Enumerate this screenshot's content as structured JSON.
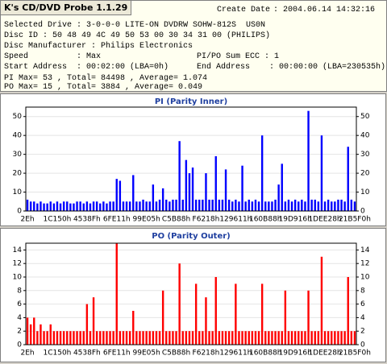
{
  "header": {
    "title": "K's CD/DVD Probe 1.1.29",
    "create_date_label": "Create Date",
    "create_date": ": 2004.06.14 14:32:16",
    "selected_drive": "Selected Drive : 3-0-0-0 LITE-ON DVDRW SOHW-812S  US0N",
    "disc_id": "Disc ID : 50 48 49 4C 49 50 53 00 30 34 31 00 (PHILIPS)",
    "disc_manufacturer": "Disc Manufacturer : Philips Electronics",
    "speed": "Speed          : Max",
    "sum_ecc": "PI/PO Sum ECC : 1",
    "start_address": "Start Address  : 00:02:00 (LBA=0h)",
    "end_address": "End Address    : 00:00:00 (LBA=230535h)",
    "pi_summary": "PI Max= 53 , Total= 84498 , Average= 1.074",
    "po_summary": "PO Max= 15 , Total= 3884 , Average= 0.049"
  },
  "chart_data": [
    {
      "type": "bar",
      "title": "PI (Parity Inner)",
      "color": "#0000ff",
      "grid": true,
      "ylim": [
        0,
        55
      ],
      "yticks": [
        0,
        10,
        20,
        30,
        40,
        50
      ],
      "categories": [
        "2Eh",
        null,
        null,
        null,
        null,
        null,
        null,
        null,
        null,
        "1C150h",
        null,
        null,
        null,
        null,
        null,
        null,
        null,
        null,
        "4538Fh",
        null,
        null,
        null,
        null,
        null,
        null,
        null,
        null,
        "6FE11h",
        null,
        null,
        null,
        null,
        null,
        null,
        null,
        null,
        "99E05h",
        null,
        null,
        null,
        null,
        null,
        null,
        null,
        null,
        "C5B88h",
        null,
        null,
        null,
        null,
        null,
        null,
        null,
        null,
        "F6218h",
        null,
        null,
        null,
        null,
        null,
        null,
        null,
        null,
        "129611h",
        null,
        null,
        null,
        null,
        null,
        null,
        null,
        null,
        "160B88h",
        null,
        null,
        null,
        null,
        null,
        null,
        null,
        null,
        "19D916h",
        null,
        null,
        null,
        null,
        null,
        null,
        null,
        null,
        "1DEE28h",
        null,
        null,
        null,
        null,
        null,
        null,
        null,
        null,
        "21B5F0h"
      ],
      "values": [
        6,
        5,
        5,
        4,
        5,
        4,
        4,
        5,
        4,
        5,
        4,
        5,
        5,
        4,
        4,
        5,
        5,
        4,
        5,
        4,
        5,
        5,
        4,
        5,
        4,
        5,
        5,
        17,
        16,
        5,
        5,
        5,
        19,
        5,
        5,
        6,
        5,
        5,
        14,
        5,
        6,
        12,
        6,
        5,
        6,
        6,
        37,
        6,
        27,
        20,
        23,
        6,
        6,
        6,
        20,
        6,
        6,
        29,
        6,
        6,
        22,
        6,
        5,
        6,
        5,
        24,
        5,
        6,
        5,
        6,
        5,
        40,
        5,
        5,
        5,
        6,
        14,
        25,
        5,
        6,
        5,
        6,
        5,
        6,
        5,
        53,
        6,
        6,
        5,
        40,
        5,
        6,
        5,
        5,
        6,
        6,
        5,
        34,
        6,
        5
      ]
    },
    {
      "type": "bar",
      "title": "PO (Parity Outer)",
      "color": "#ff0000",
      "grid": true,
      "ylim": [
        0,
        15
      ],
      "yticks": [
        0,
        2,
        4,
        6,
        8,
        10,
        12,
        14
      ],
      "categories": [
        "2Eh",
        null,
        null,
        null,
        null,
        null,
        null,
        null,
        null,
        "1C150h",
        null,
        null,
        null,
        null,
        null,
        null,
        null,
        null,
        "4538Fh",
        null,
        null,
        null,
        null,
        null,
        null,
        null,
        null,
        "6FE11h",
        null,
        null,
        null,
        null,
        null,
        null,
        null,
        null,
        "99E05h",
        null,
        null,
        null,
        null,
        null,
        null,
        null,
        null,
        "C5B88h",
        null,
        null,
        null,
        null,
        null,
        null,
        null,
        null,
        "F6218h",
        null,
        null,
        null,
        null,
        null,
        null,
        null,
        null,
        "129611h",
        null,
        null,
        null,
        null,
        null,
        null,
        null,
        null,
        "160B88h",
        null,
        null,
        null,
        null,
        null,
        null,
        null,
        null,
        "19D916h",
        null,
        null,
        null,
        null,
        null,
        null,
        null,
        null,
        "1DEE28h",
        null,
        null,
        null,
        null,
        null,
        null,
        null,
        null,
        "21B5F0h"
      ],
      "values": [
        4,
        3,
        4,
        2,
        3,
        2,
        2,
        3,
        2,
        2,
        2,
        2,
        2,
        2,
        2,
        2,
        2,
        2,
        6,
        2,
        7,
        2,
        2,
        2,
        2,
        2,
        2,
        15,
        2,
        2,
        2,
        2,
        5,
        2,
        2,
        2,
        2,
        2,
        2,
        2,
        2,
        8,
        2,
        2,
        2,
        2,
        12,
        2,
        2,
        2,
        2,
        9,
        2,
        2,
        7,
        2,
        2,
        10,
        2,
        2,
        2,
        2,
        2,
        9,
        2,
        2,
        2,
        2,
        2,
        2,
        2,
        9,
        2,
        2,
        2,
        2,
        2,
        2,
        8,
        2,
        2,
        2,
        2,
        2,
        2,
        8,
        2,
        2,
        2,
        13,
        2,
        2,
        2,
        2,
        2,
        2,
        2,
        10,
        2,
        2
      ]
    }
  ]
}
